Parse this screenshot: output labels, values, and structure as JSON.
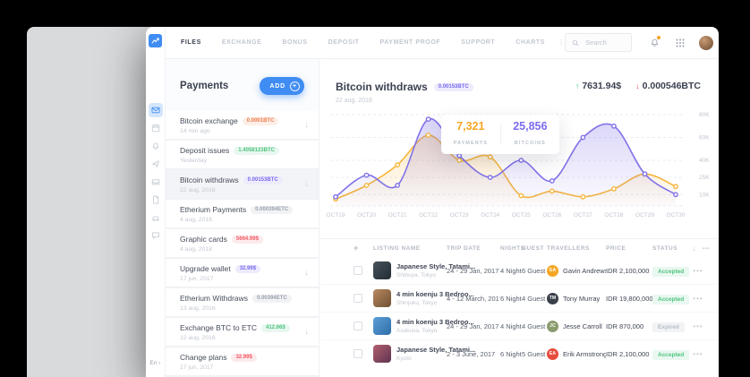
{
  "rail": {
    "logo": "trend-arrow-logo",
    "icons": [
      "mail",
      "calendar",
      "bell",
      "send",
      "inbox",
      "document",
      "car",
      "chat"
    ],
    "active_icon": "mail",
    "language": "En"
  },
  "topbar": {
    "nav": [
      {
        "label": "FILES",
        "active": true
      },
      {
        "label": "EXCHANGE",
        "active": false
      },
      {
        "label": "BONUS",
        "active": false
      },
      {
        "label": "DEPOSIT",
        "active": false
      },
      {
        "label": "PAYMENT PROOF",
        "active": false
      },
      {
        "label": "SUPPORT",
        "active": false
      },
      {
        "label": "CHARTS",
        "active": false
      }
    ],
    "search_placeholder": "Search"
  },
  "payments": {
    "title": "Payments",
    "add_label": "ADD",
    "items": [
      {
        "name": "Bitcoin exchange",
        "badge": "0.0001BTC",
        "badge_color": "orange",
        "time": "14 min ago",
        "download": true,
        "selected": false
      },
      {
        "name": "Deposit issues",
        "badge": "1.4058123BTC",
        "badge_color": "green",
        "time": "Yesterday",
        "download": false,
        "selected": false
      },
      {
        "name": "Bitcoin withdraws",
        "badge": "0.00153BTC",
        "badge_color": "purple",
        "time": "22 aug, 2018",
        "download": true,
        "selected": true
      },
      {
        "name": "Etherium Payments",
        "badge": "0.000394ETC",
        "badge_color": "gray",
        "time": "4 aug, 2018",
        "download": false,
        "selected": false
      },
      {
        "name": "Graphic cards",
        "badge": "5664.99$",
        "badge_color": "red",
        "time": "4 aug, 2018",
        "download": false,
        "selected": false
      },
      {
        "name": "Upgrade wallet",
        "badge": "32.99$",
        "badge_color": "purple",
        "time": "17 jun, 2017",
        "download": true,
        "selected": false
      },
      {
        "name": "Etherium Withdraws",
        "badge": "0.00394ETC",
        "badge_color": "gray",
        "time": "13 aug, 2016",
        "download": false,
        "selected": false
      },
      {
        "name": "Exchange BTC to ETC",
        "badge": "412.66$",
        "badge_color": "green",
        "time": "12 aug, 2016",
        "download": true,
        "selected": false
      },
      {
        "name": "Change plans",
        "badge": "32.99$",
        "badge_color": "red",
        "time": "17 jun, 2017",
        "download": false,
        "selected": false
      }
    ]
  },
  "main_header": {
    "title": "Bitcoin withdraws",
    "badge": "0.00153BTC",
    "date": "22 aug, 2018",
    "up_value": "7631.94$",
    "down_value": "0.000546BTC"
  },
  "chart_data": {
    "type": "area",
    "x": [
      "OCT19",
      "OCT20",
      "OCT21",
      "OCT22",
      "OCT23",
      "OCT24",
      "OCT25",
      "OCT26",
      "OCT27",
      "OCT28",
      "OCT29",
      "OCT30"
    ],
    "series": [
      {
        "name": "BITCOINS",
        "color": "#8172e8",
        "values": [
          8,
          27,
          18,
          76,
          44,
          25,
          40,
          22,
          60,
          70,
          28,
          10
        ]
      },
      {
        "name": "PAYMENTS",
        "color": "#f6b63c",
        "values": [
          6,
          18,
          36,
          62,
          40,
          43,
          9,
          13,
          8,
          15,
          28,
          17
        ]
      }
    ],
    "unit": "K",
    "y_ticks": [
      "80K",
      "60K",
      "40K",
      "25K",
      "10K"
    ],
    "y_tick_values": [
      80,
      60,
      40,
      25,
      10
    ],
    "ylim": [
      0,
      80
    ],
    "grid": "horizontal-dashed",
    "legend_position": "none",
    "tooltip": {
      "items": [
        {
          "value": "7,321",
          "label": "PAYMENTS",
          "color": "#f5a623"
        },
        {
          "value": "25,856",
          "label": "BITCOINS",
          "color": "#7a6cf0"
        }
      ]
    }
  },
  "table": {
    "headers": {
      "plus": "+",
      "listing": "LISTING NAME",
      "trip": "TRIP DATE",
      "nights": "NIGHTS",
      "guest": "GUEST",
      "travellers": "TRAVELLERS",
      "price": "PRICE",
      "status": "STATUS"
    },
    "rows": [
      {
        "listing": "Japanese Style, Tatami...",
        "location": "Shibuya, Tokyo",
        "trip": "24 - 29 Jan, 2017",
        "nights": "4 Nights",
        "guest": "6 Guest",
        "traveller": "Gavin Andrews",
        "initials": "GA",
        "avatar_color": "#f5a623",
        "price": "IDR 2,100,000",
        "status": "Accepted",
        "status_type": "accepted",
        "thumb": [
          "#47525a",
          "#222c33"
        ]
      },
      {
        "listing": "4 min koenju 3 Bedroo...",
        "location": "Shinjuku, Tokyo",
        "trip": "4 - 12 March, 2017",
        "nights": "6 Nights",
        "guest": "4 Guest",
        "traveller": "Tony Murray",
        "initials": "TM",
        "avatar_color": "#3a3f4a",
        "price": "IDR 19,800,000",
        "status": "Accepted",
        "status_type": "accepted",
        "thumb": [
          "#b98a5f",
          "#6f4f33"
        ]
      },
      {
        "listing": "4 min koenju 3 Bedroo...",
        "location": "Asakusa, Tokyo",
        "trip": "24 - 29 Jan, 2017",
        "nights": "4 Nights",
        "guest": "4 Guest",
        "traveller": "Jesse Carroll",
        "initials": "JC",
        "avatar_color": "#8a9b6e",
        "price": "IDR 870,000",
        "status": "Expired",
        "status_type": "expired",
        "thumb": [
          "#5e9fd8",
          "#2e6ea8"
        ]
      },
      {
        "listing": "Japanese Style, Tatami...",
        "location": "Kyoto",
        "trip": "2 - 3 June, 2017",
        "nights": "6 Nights",
        "guest": "5 Guest",
        "traveller": "Erik Armstrong",
        "initials": "EA",
        "avatar_color": "#e84c3d",
        "price": "IDR 2,100,000",
        "status": "Accepted",
        "status_type": "accepted",
        "thumb": [
          "#b4606e",
          "#5d3350"
        ]
      }
    ]
  },
  "colors": {
    "accent_blue": "#3f8cf3",
    "chart_purple": "#8172e8",
    "chart_yellow": "#f6b63c",
    "stat_up_green": "#3ecf8e",
    "stat_down_red": "#f2545b"
  }
}
